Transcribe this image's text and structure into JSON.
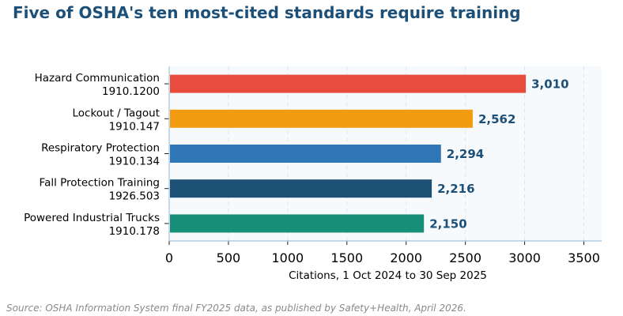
{
  "chart_data": {
    "type": "bar",
    "orientation": "horizontal",
    "title": "Five of OSHA's ten most-cited standards require training",
    "xlabel": "Citations, 1 Oct 2024 to 30 Sep 2025",
    "ylabel": "",
    "xlim": [
      0,
      3650
    ],
    "xticks": [
      0,
      500,
      1000,
      1500,
      2000,
      2500,
      3000,
      3500
    ],
    "grid": "vertical-dashed",
    "categories": [
      {
        "name": "Hazard Communication",
        "code": "1910.1200"
      },
      {
        "name": "Lockout / Tagout",
        "code": "1910.147"
      },
      {
        "name": "Respiratory Protection",
        "code": "1910.134"
      },
      {
        "name": "Fall Protection Training",
        "code": "1926.503"
      },
      {
        "name": "Powered Industrial Trucks",
        "code": "1910.178"
      }
    ],
    "values": [
      3010,
      2562,
      2294,
      2216,
      2150
    ],
    "value_labels": [
      "3,010",
      "2,562",
      "2,294",
      "2,216",
      "2,150"
    ],
    "colors": [
      "#e84c3d",
      "#f39c12",
      "#3077b8",
      "#1c5074",
      "#178f78"
    ],
    "plot_background": "#f7fafd",
    "spine_color": "#a5c2dc",
    "value_label_color": "#1c5078",
    "source": "Source: OSHA Information System final FY2025 data, as published by Safety+Health, April 2026."
  }
}
